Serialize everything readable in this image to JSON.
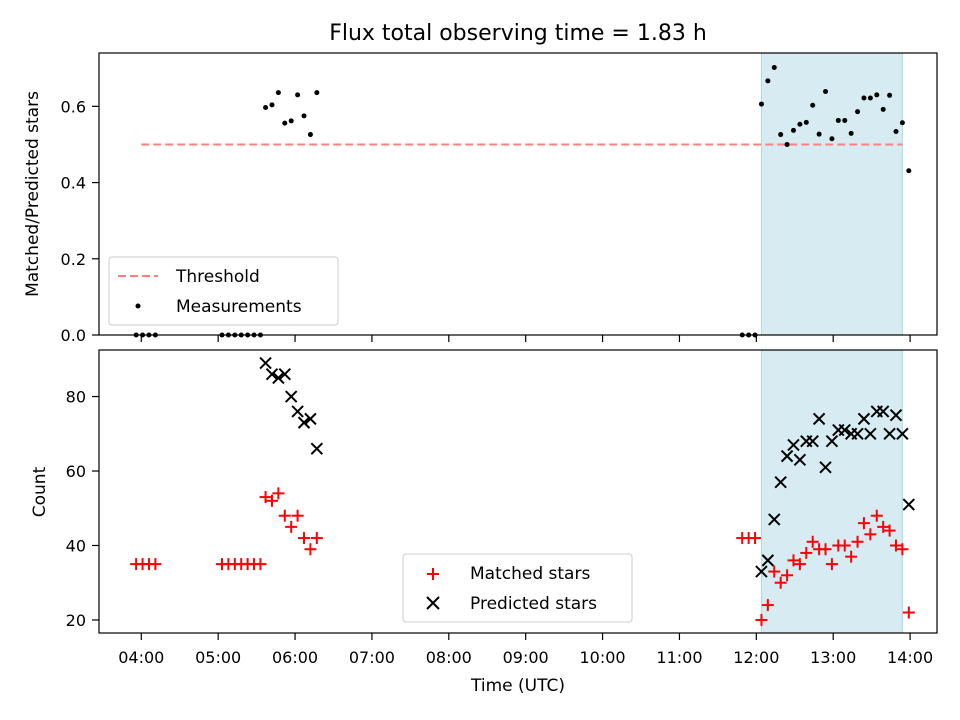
{
  "title": "Flux total observing time = 1.83 h",
  "chart_data": [
    {
      "type": "scatter",
      "panel": "top",
      "ylabel": "Matched/Predicted stars",
      "xlabel": "",
      "ylim": [
        0.0,
        0.74
      ],
      "yticks": [
        0.0,
        0.2,
        0.4,
        0.6
      ],
      "ytick_labels": [
        "0.0",
        "0.2",
        "0.4",
        "0.6"
      ],
      "legend_position": "lower-left",
      "highlight_span": {
        "x_start": "12:04",
        "x_end": "13:54",
        "color": "#add8e6"
      },
      "threshold": {
        "name": "Threshold",
        "value": 0.5,
        "x_start": "04:00",
        "x_end": "13:54",
        "color": "#ff0000"
      },
      "series": [
        {
          "name": "Measurements",
          "color": "#000000",
          "points": [
            [
              "03:56",
              0.0
            ],
            [
              "04:01",
              0.0
            ],
            [
              "04:06",
              0.0
            ],
            [
              "04:11",
              0.0
            ],
            [
              "05:03",
              0.0
            ],
            [
              "05:08",
              0.0
            ],
            [
              "05:13",
              0.0
            ],
            [
              "05:18",
              0.0
            ],
            [
              "05:23",
              0.0
            ],
            [
              "05:28",
              0.0
            ],
            [
              "05:33",
              0.0
            ],
            [
              "05:37",
              0.597
            ],
            [
              "05:42",
              0.604
            ],
            [
              "05:47",
              0.636
            ],
            [
              "05:52",
              0.556
            ],
            [
              "05:57",
              0.562
            ],
            [
              "06:02",
              0.63
            ],
            [
              "06:07",
              0.575
            ],
            [
              "06:12",
              0.526
            ],
            [
              "06:17",
              0.636
            ],
            [
              "11:49",
              0.0
            ],
            [
              "11:54",
              0.0
            ],
            [
              "11:59",
              0.0
            ],
            [
              "12:04",
              0.606
            ],
            [
              "12:09",
              0.667
            ],
            [
              "12:14",
              0.702
            ],
            [
              "12:19",
              0.526
            ],
            [
              "12:24",
              0.5
            ],
            [
              "12:29",
              0.537
            ],
            [
              "12:34",
              0.553
            ],
            [
              "12:39",
              0.558
            ],
            [
              "12:44",
              0.603
            ],
            [
              "12:49",
              0.527
            ],
            [
              "12:54",
              0.639
            ],
            [
              "12:59",
              0.515
            ],
            [
              "13:04",
              0.563
            ],
            [
              "13:09",
              0.563
            ],
            [
              "13:14",
              0.529
            ],
            [
              "13:19",
              0.586
            ],
            [
              "13:24",
              0.622
            ],
            [
              "13:29",
              0.622
            ],
            [
              "13:34",
              0.63
            ],
            [
              "13:39",
              0.592
            ],
            [
              "13:44",
              0.629
            ],
            [
              "13:49",
              0.534
            ],
            [
              "13:54",
              0.557
            ],
            [
              "13:59",
              0.431
            ]
          ]
        }
      ]
    },
    {
      "type": "scatter",
      "panel": "bottom",
      "ylabel": "Count",
      "xlabel": "Time (UTC)",
      "ylim": [
        16.5,
        92.5
      ],
      "yticks": [
        20,
        40,
        60,
        80
      ],
      "ytick_labels": [
        "20",
        "40",
        "60",
        "80"
      ],
      "xlim": [
        "03:27",
        "14:21"
      ],
      "xticks": [
        "04:00",
        "05:00",
        "06:00",
        "07:00",
        "08:00",
        "09:00",
        "10:00",
        "11:00",
        "12:00",
        "13:00",
        "14:00"
      ],
      "legend_position": "lower-center",
      "highlight_span": {
        "x_start": "12:04",
        "x_end": "13:54",
        "color": "#add8e6"
      },
      "series": [
        {
          "name": "Matched stars",
          "marker": "+",
          "color": "#ff0000",
          "points": [
            [
              "03:56",
              35
            ],
            [
              "04:01",
              35
            ],
            [
              "04:06",
              35
            ],
            [
              "04:11",
              35
            ],
            [
              "05:03",
              35
            ],
            [
              "05:08",
              35
            ],
            [
              "05:13",
              35
            ],
            [
              "05:18",
              35
            ],
            [
              "05:23",
              35
            ],
            [
              "05:28",
              35
            ],
            [
              "05:33",
              35
            ],
            [
              "05:37",
              53
            ],
            [
              "05:42",
              52
            ],
            [
              "05:47",
              54
            ],
            [
              "05:52",
              48
            ],
            [
              "05:57",
              45
            ],
            [
              "06:02",
              48
            ],
            [
              "06:07",
              42
            ],
            [
              "06:12",
              39
            ],
            [
              "06:17",
              42
            ],
            [
              "11:49",
              42
            ],
            [
              "11:54",
              42
            ],
            [
              "11:59",
              42
            ],
            [
              "12:04",
              20
            ],
            [
              "12:09",
              24
            ],
            [
              "12:14",
              33
            ],
            [
              "12:19",
              30
            ],
            [
              "12:24",
              32
            ],
            [
              "12:29",
              36
            ],
            [
              "12:34",
              35
            ],
            [
              "12:39",
              38
            ],
            [
              "12:44",
              41
            ],
            [
              "12:49",
              39
            ],
            [
              "12:54",
              39
            ],
            [
              "12:59",
              35
            ],
            [
              "13:04",
              40
            ],
            [
              "13:09",
              40
            ],
            [
              "13:14",
              37
            ],
            [
              "13:19",
              41
            ],
            [
              "13:24",
              46
            ],
            [
              "13:29",
              43
            ],
            [
              "13:34",
              48
            ],
            [
              "13:39",
              45
            ],
            [
              "13:44",
              44
            ],
            [
              "13:49",
              40
            ],
            [
              "13:54",
              39
            ],
            [
              "13:59",
              22
            ]
          ]
        },
        {
          "name": "Predicted stars",
          "marker": "x",
          "color": "#000000",
          "points": [
            [
              "05:37",
              89
            ],
            [
              "05:42",
              86
            ],
            [
              "05:47",
              85
            ],
            [
              "05:52",
              86
            ],
            [
              "05:57",
              80
            ],
            [
              "06:02",
              76
            ],
            [
              "06:07",
              73
            ],
            [
              "06:12",
              74
            ],
            [
              "06:17",
              66
            ],
            [
              "12:04",
              33
            ],
            [
              "12:09",
              36
            ],
            [
              "12:14",
              47
            ],
            [
              "12:19",
              57
            ],
            [
              "12:24",
              64
            ],
            [
              "12:29",
              67
            ],
            [
              "12:34",
              63
            ],
            [
              "12:39",
              68
            ],
            [
              "12:44",
              68
            ],
            [
              "12:49",
              74
            ],
            [
              "12:54",
              61
            ],
            [
              "12:59",
              68
            ],
            [
              "13:04",
              71
            ],
            [
              "13:09",
              71
            ],
            [
              "13:14",
              70
            ],
            [
              "13:19",
              70
            ],
            [
              "13:24",
              74
            ],
            [
              "13:29",
              70
            ],
            [
              "13:34",
              76
            ],
            [
              "13:39",
              76
            ],
            [
              "13:44",
              70
            ],
            [
              "13:49",
              75
            ],
            [
              "13:54",
              70
            ],
            [
              "13:59",
              51
            ]
          ]
        }
      ]
    }
  ]
}
